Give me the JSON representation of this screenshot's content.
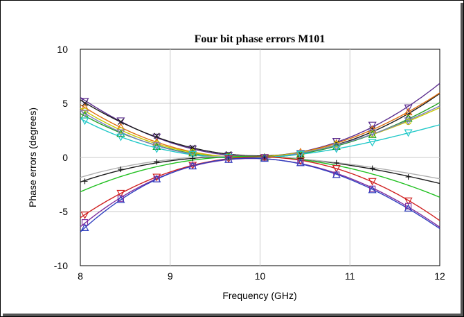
{
  "chart_data": {
    "type": "line",
    "title": "Four bit phase errors M101",
    "xlabel": "Frequency (GHz)",
    "ylabel": "Phase errors (degrees)",
    "xlim": [
      8,
      12
    ],
    "ylim": [
      -10,
      10
    ],
    "x_ticks": [
      "8",
      "9",
      "10",
      "11",
      "12"
    ],
    "y_ticks": [
      "10",
      "5",
      "0",
      "-5",
      "-10"
    ],
    "grid": true,
    "legend": "none",
    "x": [
      8.05,
      8.45,
      8.85,
      9.25,
      9.65,
      10.05,
      10.45,
      10.85,
      11.25,
      11.65
    ],
    "series": [
      {
        "color": "#5b2d8e",
        "marker": "down-triangle",
        "values": [
          5.2,
          3.4,
          1.9,
          0.8,
          0.2,
          0.0,
          0.4,
          1.5,
          3.0,
          4.6
        ]
      },
      {
        "color": "#1a1a1a",
        "marker": "x",
        "values": [
          5.0,
          3.3,
          2.0,
          0.9,
          0.3,
          0.0,
          0.3,
          1.3,
          2.6,
          3.9
        ]
      },
      {
        "color": "#e07010",
        "marker": "triangle",
        "values": [
          4.6,
          2.8,
          1.4,
          0.5,
          0.1,
          0.0,
          0.5,
          1.3,
          2.6,
          4.2
        ]
      },
      {
        "color": "#c8c800",
        "marker": "circle",
        "values": [
          4.3,
          2.5,
          1.3,
          0.5,
          0.1,
          0.0,
          0.4,
          1.2,
          2.2,
          3.3
        ]
      },
      {
        "color": "#20a020",
        "marker": "triangle",
        "values": [
          3.9,
          2.2,
          1.0,
          0.4,
          0.1,
          0.0,
          0.3,
          1.0,
          2.1,
          3.6
        ]
      },
      {
        "color": "#8080c0",
        "marker": "down-triangle",
        "values": [
          4.1,
          2.3,
          1.1,
          0.3,
          0.0,
          0.0,
          0.4,
          1.0,
          2.3,
          3.4
        ]
      },
      {
        "color": "#20c8c8",
        "marker": "down-triangle",
        "values": [
          3.4,
          1.9,
          0.8,
          0.3,
          0.0,
          0.0,
          0.3,
          0.8,
          1.4,
          2.3
        ]
      },
      {
        "color": "#1a1a1a",
        "marker": "plus",
        "values": [
          -2.2,
          -1.1,
          -0.4,
          -0.1,
          0.0,
          0.0,
          -0.1,
          -0.5,
          -1.0,
          -1.8
        ]
      },
      {
        "color": "#b0b0b0",
        "marker": "none",
        "values": [
          -1.8,
          -0.8,
          -0.3,
          0.0,
          0.0,
          0.0,
          -0.1,
          -0.4,
          -0.9,
          -1.5
        ]
      },
      {
        "color": "#20c020",
        "marker": "none",
        "values": [
          -3.0,
          -1.8,
          -0.8,
          -0.2,
          0.0,
          0.0,
          -0.2,
          -0.7,
          -1.5,
          -2.6
        ]
      },
      {
        "color": "#d02020",
        "marker": "down-triangle",
        "values": [
          -5.3,
          -3.3,
          -1.8,
          -0.7,
          -0.1,
          0.0,
          -0.3,
          -1.0,
          -2.2,
          -4.0
        ]
      },
      {
        "color": "#8030a0",
        "marker": "square",
        "values": [
          -6.0,
          -3.8,
          -2.0,
          -0.8,
          -0.2,
          0.0,
          -0.5,
          -1.6,
          -2.9,
          -4.5
        ]
      },
      {
        "color": "#3040c0",
        "marker": "triangle",
        "values": [
          -6.5,
          -3.9,
          -2.0,
          -0.8,
          -0.2,
          -0.1,
          -0.5,
          -1.6,
          -3.0,
          -4.7
        ]
      }
    ]
  }
}
